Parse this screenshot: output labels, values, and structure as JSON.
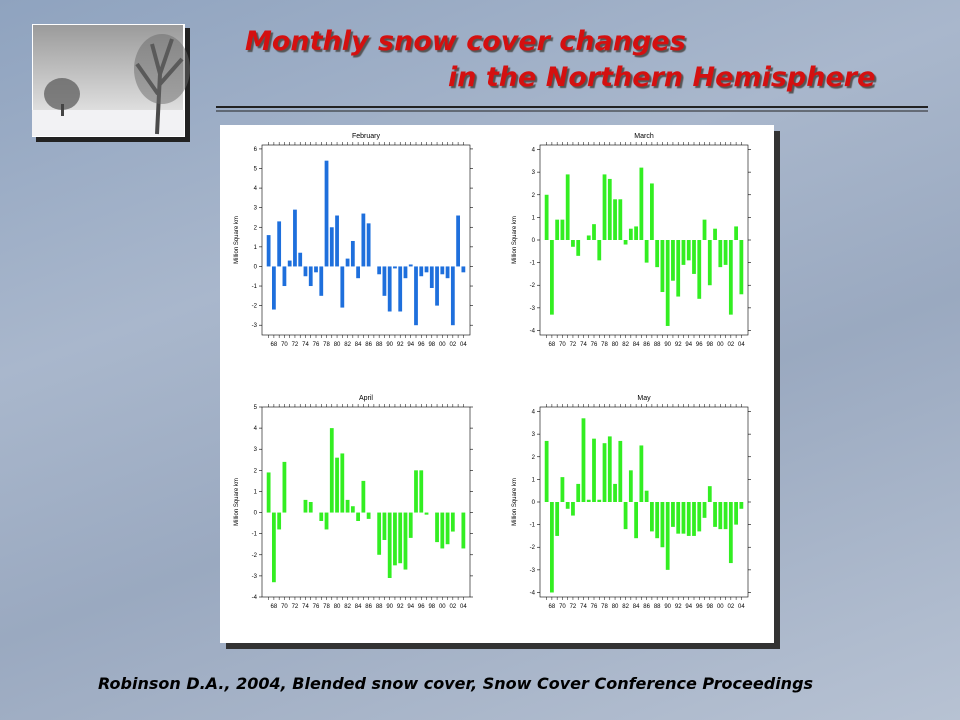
{
  "title": [
    "Monthly snow cover changes",
    "in the Northern Hemisphere"
  ],
  "citation": "Robinson D.A., 2004, Blended snow cover, Snow Cover Conference Proceedings",
  "chart_data": [
    {
      "type": "bar",
      "title": "February",
      "y_label": "Million Square km",
      "color": "#1e6fdc",
      "categories": [
        null,
        "68",
        null,
        "70",
        null,
        "72",
        null,
        "74",
        null,
        "76",
        null,
        "78",
        null,
        "80",
        null,
        "82",
        null,
        "84",
        null,
        "86",
        null,
        "88",
        null,
        "90",
        null,
        "92",
        null,
        "94",
        null,
        "96",
        null,
        "98",
        null,
        "00",
        null,
        "02",
        null,
        "04"
      ],
      "values": [
        1.6,
        -2.2,
        2.3,
        -1.0,
        0.3,
        2.9,
        0.7,
        -0.5,
        -1.0,
        -0.3,
        -1.5,
        5.4,
        2.0,
        2.6,
        -2.1,
        0.4,
        1.3,
        -0.6,
        2.7,
        2.2,
        0.0,
        -0.4,
        -1.5,
        -2.3,
        -0.1,
        -2.3,
        -0.6,
        0.1,
        -3.0,
        -0.5,
        -0.3,
        -1.1,
        -2.0,
        -0.4,
        -0.6,
        -3.0,
        2.6,
        -0.3
      ],
      "ylim": [
        -3.5,
        6.2
      ],
      "yticks": [
        -3,
        -2,
        -1,
        0,
        1,
        2,
        3,
        4,
        5,
        6
      ]
    },
    {
      "type": "bar",
      "title": "March",
      "y_label": "Million Square km",
      "color": "#33ee22",
      "categories": [
        null,
        "68",
        null,
        "70",
        null,
        "72",
        null,
        "74",
        null,
        "76",
        null,
        "78",
        null,
        "80",
        null,
        "82",
        null,
        "84",
        null,
        "86",
        null,
        "88",
        null,
        "90",
        null,
        "92",
        null,
        "94",
        null,
        "96",
        null,
        "98",
        null,
        "00",
        null,
        "02",
        null,
        "04"
      ],
      "values": [
        2.0,
        -3.3,
        0.9,
        0.9,
        2.9,
        -0.3,
        -0.7,
        0.0,
        0.2,
        0.7,
        -0.9,
        2.9,
        2.7,
        1.8,
        1.8,
        -0.2,
        0.5,
        0.6,
        3.2,
        -1.0,
        2.5,
        -1.2,
        -2.3,
        -3.8,
        -1.8,
        -2.5,
        -1.1,
        -0.9,
        -1.5,
        -2.6,
        0.9,
        -2.0,
        0.5,
        -1.2,
        -1.1,
        -3.3,
        0.6,
        -2.4
      ],
      "ylim": [
        -4.2,
        4.2
      ],
      "yticks": [
        -4,
        -3,
        -2,
        -1,
        0,
        1,
        2,
        3,
        4
      ]
    },
    {
      "type": "bar",
      "title": "April",
      "y_label": "Million Square km",
      "color": "#33ee22",
      "categories": [
        null,
        "68",
        null,
        "70",
        null,
        "72",
        null,
        "74",
        null,
        "76",
        null,
        "78",
        null,
        "80",
        null,
        "82",
        null,
        "84",
        null,
        "86",
        null,
        "88",
        null,
        "90",
        null,
        "92",
        null,
        "94",
        null,
        "96",
        null,
        "98",
        null,
        "00",
        null,
        "02",
        null,
        "04"
      ],
      "values": [
        1.9,
        -3.3,
        -0.8,
        2.4,
        0.0,
        0.0,
        0.0,
        0.6,
        0.5,
        0.0,
        -0.4,
        -0.8,
        4.0,
        2.6,
        2.8,
        0.6,
        0.3,
        -0.4,
        1.5,
        -0.3,
        0.0,
        -2.0,
        -1.3,
        -3.1,
        -2.5,
        -2.4,
        -2.7,
        -1.2,
        2.0,
        2.0,
        -0.1,
        0.0,
        -1.4,
        -1.7,
        -1.5,
        -0.9,
        0.0,
        -1.7
      ],
      "ylim": [
        -4,
        5
      ],
      "yticks": [
        -4,
        -3,
        -2,
        -1,
        0,
        1,
        2,
        3,
        4,
        5
      ]
    },
    {
      "type": "bar",
      "title": "May",
      "y_label": "Million Square km",
      "color": "#33ee22",
      "categories": [
        null,
        "68",
        null,
        "70",
        null,
        "72",
        null,
        "74",
        null,
        "76",
        null,
        "78",
        null,
        "80",
        null,
        "82",
        null,
        "84",
        null,
        "86",
        null,
        "88",
        null,
        "90",
        null,
        "92",
        null,
        "94",
        null,
        "96",
        null,
        "98",
        null,
        "00",
        null,
        "02",
        null,
        "04"
      ],
      "values": [
        2.7,
        -4.0,
        -1.5,
        1.1,
        -0.3,
        -0.6,
        0.8,
        3.7,
        0.1,
        2.8,
        0.1,
        2.6,
        2.9,
        0.8,
        2.7,
        -1.2,
        1.4,
        -1.6,
        2.5,
        0.5,
        -1.3,
        -1.6,
        -2.0,
        -3.0,
        -1.1,
        -1.4,
        -1.4,
        -1.5,
        -1.5,
        -1.3,
        -0.7,
        0.7,
        -1.1,
        -1.2,
        -1.2,
        -2.7,
        -1.0,
        -0.3
      ],
      "ylim": [
        -4.2,
        4.2
      ],
      "yticks": [
        -4,
        -3,
        -2,
        -1,
        0,
        1,
        2,
        3,
        4
      ]
    }
  ]
}
